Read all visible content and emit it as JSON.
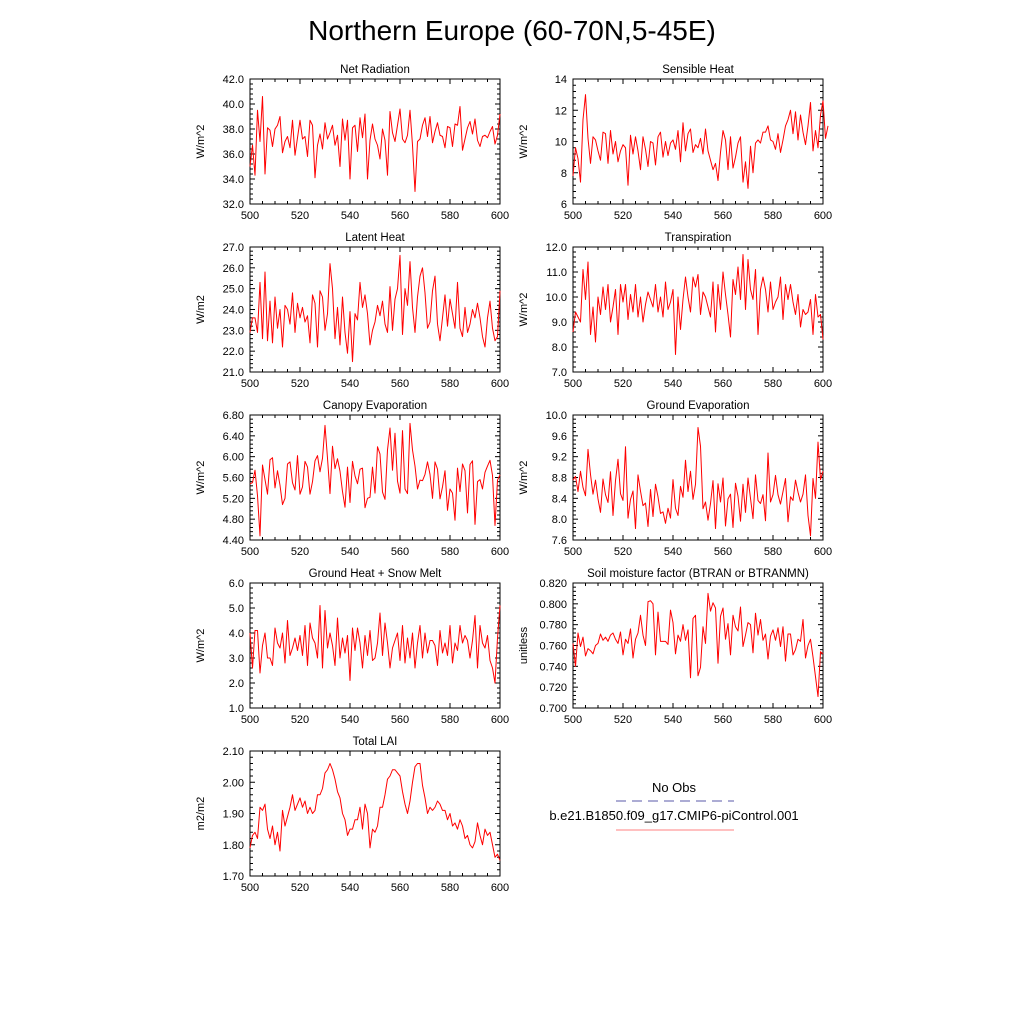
{
  "title": "Northern Europe (60-70N,5-45E)",
  "legend": {
    "obs_label": "No Obs",
    "obs_color": "#5a5aa8",
    "model_label": "b.e21.B1850.f09_g17.CMIP6-piControl.001",
    "model_color": "#ff8080"
  },
  "line_color": "#ff0000",
  "chart_data": [
    {
      "type": "line",
      "title": "Net Radiation",
      "ylabel": "W/m^2",
      "xlim": [
        500,
        600
      ],
      "ylim": [
        32,
        42
      ],
      "xticks": [
        "500",
        "520",
        "540",
        "560",
        "580",
        "600"
      ],
      "yticks": [
        "32.0",
        "34.0",
        "36.0",
        "38.0",
        "40.0",
        "42.0"
      ],
      "x_start": 500,
      "values": [
        35.0,
        36.7,
        34.3,
        39.5,
        37.0,
        40.6,
        34.4,
        38.1,
        37.9,
        36.6,
        38.0,
        38.3,
        39.0,
        36.1,
        37.0,
        37.4,
        36.5,
        38.7,
        35.9,
        37.3,
        38.7,
        37.2,
        37.4,
        35.8,
        38.7,
        38.3,
        34.1,
        36.7,
        37.6,
        36.4,
        38.5,
        37.2,
        37.7,
        38.3,
        36.7,
        37.5,
        35.0,
        38.8,
        37.1,
        38.7,
        34.0,
        38.1,
        38.3,
        36.2,
        38.9,
        37.3,
        39.2,
        34.0,
        37.1,
        38.4,
        37.2,
        36.7,
        35.6,
        38.0,
        37.1,
        34.3,
        39.4,
        37.7,
        37.0,
        38.3,
        39.6,
        37.2,
        36.9,
        37.5,
        39.5,
        36.7,
        33.0,
        37.0,
        37.2,
        38.3,
        38.9,
        37.4,
        39.0,
        36.9,
        37.8,
        38.5,
        37.5,
        37.4,
        36.5,
        38.2,
        38.1,
        36.6,
        38.4,
        38.3,
        39.8,
        36.3,
        37.2,
        38.1,
        38.6,
        37.6,
        38.8,
        37.1,
        36.6,
        37.4,
        37.5,
        37.3,
        37.8,
        38.2,
        36.8,
        37.5,
        39.2
      ]
    },
    {
      "type": "line",
      "title": "Sensible Heat",
      "ylabel": "W/m^2",
      "xlim": [
        500,
        600
      ],
      "ylim": [
        6,
        14
      ],
      "xticks": [
        "500",
        "520",
        "540",
        "560",
        "580",
        "600"
      ],
      "yticks": [
        "6",
        "8",
        "10",
        "12",
        "14"
      ],
      "x_start": 500,
      "values": [
        7.8,
        9.6,
        8.9,
        7.4,
        11.4,
        13.0,
        10.2,
        8.6,
        10.3,
        10.1,
        9.4,
        8.8,
        10.6,
        10.5,
        8.6,
        10.7,
        9.2,
        10.0,
        8.7,
        9.4,
        9.8,
        9.6,
        7.2,
        10.4,
        9.2,
        10.3,
        9.4,
        8.2,
        10.3,
        9.5,
        8.4,
        10.0,
        9.9,
        8.5,
        10.3,
        10.6,
        9.0,
        10.0,
        9.1,
        9.9,
        10.1,
        9.5,
        10.7,
        8.7,
        11.2,
        9.4,
        10.5,
        10.8,
        9.3,
        9.8,
        9.6,
        10.2,
        9.2,
        10.8,
        9.4,
        8.8,
        8.2,
        8.6,
        7.5,
        9.3,
        10.7,
        10.1,
        8.2,
        10.3,
        8.3,
        9.0,
        9.9,
        10.3,
        7.4,
        8.7,
        7.0,
        9.7,
        8.0,
        9.9,
        10.1,
        9.9,
        10.6,
        10.6,
        11.0,
        10.1,
        10.0,
        9.5,
        10.5,
        9.3,
        10.1,
        11.0,
        11.4,
        12.0,
        10.5,
        11.9,
        10.1,
        11.7,
        10.6,
        9.8,
        11.0,
        12.5,
        9.4,
        10.7,
        9.6,
        11.7,
        12.6,
        10.2,
        11.0
      ]
    },
    {
      "type": "line",
      "title": "Latent Heat",
      "ylabel": "W/m2",
      "xlim": [
        500,
        600
      ],
      "ylim": [
        21,
        27
      ],
      "xticks": [
        "500",
        "520",
        "540",
        "560",
        "580",
        "600"
      ],
      "yticks": [
        "21.0",
        "22.0",
        "23.0",
        "24.0",
        "25.0",
        "26.0",
        "27.0"
      ],
      "x_start": 500,
      "values": [
        22.9,
        23.6,
        23.6,
        22.9,
        25.3,
        22.6,
        25.8,
        22.5,
        24.4,
        22.4,
        24.6,
        23.1,
        24.0,
        22.2,
        24.2,
        24.0,
        23.3,
        24.8,
        22.9,
        24.3,
        23.6,
        24.1,
        23.4,
        23.7,
        22.4,
        24.7,
        24.3,
        22.2,
        24.9,
        24.6,
        23.0,
        23.8,
        26.2,
        25.0,
        22.6,
        24.1,
        22.3,
        24.6,
        22.9,
        21.9,
        23.9,
        21.5,
        23.8,
        23.5,
        25.3,
        24.1,
        24.7,
        23.8,
        22.3,
        23.0,
        23.4,
        24.2,
        23.7,
        24.4,
        23.3,
        22.9,
        25.1,
        23.0,
        24.5,
        25.0,
        26.6,
        22.8,
        25.0,
        24.2,
        26.3,
        24.1,
        22.9,
        24.6,
        25.6,
        26.0,
        24.8,
        23.1,
        23.4,
        24.9,
        25.6,
        23.3,
        22.5,
        23.6,
        24.7,
        23.2,
        24.5,
        23.8,
        23.1,
        25.3,
        23.1,
        22.7,
        24.1,
        22.9,
        23.3,
        24.0,
        23.6,
        24.3,
        23.6,
        22.7,
        22.2,
        23.6,
        24.4,
        23.1,
        22.5,
        22.7,
        24.9
      ]
    },
    {
      "type": "line",
      "title": "Transpiration",
      "ylabel": "W/m^2",
      "xlim": [
        500,
        600
      ],
      "ylim": [
        7,
        12
      ],
      "xticks": [
        "500",
        "520",
        "540",
        "560",
        "580",
        "600"
      ],
      "yticks": [
        "7.0",
        "8.0",
        "9.0",
        "10.0",
        "11.0",
        "12.0"
      ],
      "x_start": 500,
      "values": [
        8.6,
        9.4,
        9.2,
        9.0,
        11.1,
        9.9,
        11.4,
        8.5,
        9.6,
        8.2,
        10.0,
        9.3,
        10.4,
        9.5,
        10.5,
        9.0,
        9.6,
        10.3,
        8.5,
        10.5,
        9.8,
        10.5,
        9.1,
        10.1,
        9.4,
        10.5,
        9.2,
        10.0,
        9.0,
        9.7,
        10.2,
        9.9,
        9.6,
        10.5,
        9.4,
        10.0,
        9.2,
        10.6,
        9.5,
        9.8,
        10.3,
        7.7,
        10.0,
        8.7,
        9.9,
        10.8,
        10.0,
        9.4,
        10.8,
        10.4,
        10.9,
        9.3,
        10.2,
        10.0,
        9.6,
        9.2,
        10.6,
        8.6,
        10.5,
        9.5,
        11.0,
        10.1,
        9.3,
        8.4,
        10.7,
        10.1,
        11.2,
        9.9,
        11.7,
        9.5,
        11.5,
        10.3,
        9.9,
        11.1,
        8.5,
        10.3,
        10.8,
        10.3,
        9.4,
        10.6,
        9.5,
        9.8,
        10.0,
        10.8,
        9.1,
        10.5,
        9.9,
        10.5,
        9.8,
        9.3,
        10.1,
        8.8,
        9.5,
        9.3,
        9.4,
        9.9,
        8.5,
        10.1,
        9.2,
        9.3,
        8.3
      ]
    },
    {
      "type": "line",
      "title": "Canopy Evaporation",
      "ylabel": "W/m^2",
      "xlim": [
        500,
        600
      ],
      "ylim": [
        4.4,
        6.8
      ],
      "xticks": [
        "500",
        "520",
        "540",
        "560",
        "580",
        "600"
      ],
      "yticks": [
        "4.40",
        "4.80",
        "5.20",
        "5.60",
        "6.00",
        "6.40",
        "6.80"
      ],
      "x_start": 500,
      "values": [
        5.48,
        5.5,
        5.74,
        5.25,
        4.48,
        5.84,
        5.56,
        5.28,
        5.94,
        5.98,
        5.4,
        5.73,
        5.45,
        5.08,
        5.2,
        5.86,
        5.9,
        5.5,
        5.36,
        6.02,
        5.28,
        5.42,
        5.91,
        5.8,
        5.28,
        5.52,
        5.92,
        6.02,
        5.71,
        5.97,
        6.6,
        5.97,
        5.29,
        6.2,
        5.77,
        5.96,
        5.72,
        5.33,
        5.03,
        5.8,
        5.12,
        5.91,
        5.63,
        5.48,
        5.76,
        5.78,
        5.02,
        5.2,
        5.22,
        5.8,
        5.3,
        6.19,
        6.05,
        5.32,
        5.18,
        6.13,
        6.55,
        5.74,
        6.45,
        5.53,
        5.3,
        6.5,
        5.38,
        5.29,
        6.64,
        6.13,
        5.82,
        5.38,
        5.55,
        5.54,
        5.66,
        5.9,
        5.66,
        5.2,
        5.9,
        5.76,
        5.19,
        5.42,
        5.73,
        4.97,
        5.38,
        5.3,
        4.78,
        5.78,
        5.33,
        5.86,
        5.73,
        4.92,
        5.85,
        5.92,
        4.7,
        5.52,
        5.56,
        5.38,
        5.7,
        5.82,
        5.93,
        5.64,
        4.68,
        5.55,
        5.65
      ]
    },
    {
      "type": "line",
      "title": "Ground Evaporation",
      "ylabel": "W/m^2",
      "xlim": [
        500,
        600
      ],
      "ylim": [
        7.6,
        10.0
      ],
      "xticks": [
        "500",
        "520",
        "540",
        "560",
        "580",
        "600"
      ],
      "yticks": [
        "7.6",
        "8.0",
        "8.4",
        "8.8",
        "9.2",
        "9.6",
        "10.0"
      ],
      "x_start": 500,
      "values": [
        8.75,
        8.82,
        8.53,
        8.92,
        8.61,
        8.45,
        9.34,
        8.86,
        8.48,
        8.75,
        8.39,
        8.13,
        8.77,
        8.47,
        8.32,
        8.91,
        8.07,
        8.74,
        9.15,
        8.49,
        8.36,
        9.39,
        8.02,
        8.38,
        8.54,
        7.82,
        8.85,
        8.54,
        8.26,
        8.31,
        7.86,
        8.57,
        8.05,
        8.67,
        8.43,
        8.11,
        8.14,
        7.92,
        8.21,
        8.02,
        8.76,
        8.21,
        8.07,
        8.63,
        8.42,
        9.13,
        8.53,
        8.92,
        8.38,
        8.67,
        9.76,
        9.4,
        8.2,
        8.33,
        7.98,
        8.3,
        8.74,
        7.82,
        8.68,
        8.33,
        8.79,
        7.87,
        8.39,
        8.48,
        7.84,
        8.69,
        8.44,
        7.96,
        8.67,
        8.13,
        8.79,
        8.4,
        8.01,
        8.85,
        8.36,
        8.3,
        8.47,
        7.97,
        9.27,
        8.33,
        8.47,
        8.84,
        8.47,
        8.29,
        8.53,
        8.78,
        7.95,
        8.43,
        8.36,
        8.75,
        8.52,
        8.33,
        8.48,
        8.85,
        8.07,
        7.68,
        8.78,
        8.4,
        9.48,
        8.76,
        8.92
      ]
    },
    {
      "type": "line",
      "title": "Ground Heat + Snow Melt",
      "ylabel": "W/m^2",
      "xlim": [
        500,
        600
      ],
      "ylim": [
        1,
        6
      ],
      "xticks": [
        "500",
        "520",
        "540",
        "560",
        "580",
        "600"
      ],
      "yticks": [
        "1.0",
        "2.0",
        "3.0",
        "4.0",
        "5.0",
        "6.0"
      ],
      "x_start": 500,
      "values": [
        4.0,
        2.6,
        4.1,
        4.1,
        2.4,
        3.5,
        4.0,
        3.0,
        3.0,
        2.7,
        4.2,
        3.6,
        3.4,
        4.0,
        2.8,
        4.5,
        3.1,
        3.4,
        3.8,
        3.3,
        3.9,
        3.1,
        4.3,
        2.7,
        4.4,
        3.8,
        3.6,
        3.0,
        5.1,
        2.6,
        4.9,
        3.4,
        4.0,
        3.5,
        2.7,
        4.6,
        3.0,
        3.8,
        3.2,
        3.9,
        2.1,
        4.2,
        3.3,
        4.2,
        3.6,
        2.6,
        3.9,
        3.1,
        4.1,
        2.9,
        3.0,
        3.6,
        4.8,
        3.1,
        4.4,
        3.6,
        2.6,
        3.4,
        3.7,
        4.0,
        2.9,
        4.3,
        2.8,
        3.8,
        3.0,
        4.0,
        2.6,
        3.6,
        4.3,
        3.0,
        4.0,
        3.2,
        3.7,
        3.7,
        3.5,
        2.7,
        4.1,
        3.2,
        3.6,
        3.1,
        4.3,
        2.8,
        3.6,
        3.3,
        4.3,
        3.6,
        3.9,
        3.7,
        3.0,
        3.7,
        4.7,
        2.6,
        4.3,
        3.6,
        3.4,
        3.9,
        2.9,
        2.6,
        2.0,
        3.8,
        5.1
      ]
    },
    {
      "type": "line",
      "title": "Soil moisture factor (BTRAN or BTRANMN)",
      "ylabel": "unitless",
      "xlim": [
        500,
        600
      ],
      "ylim": [
        0.7,
        0.82
      ],
      "xticks": [
        "500",
        "520",
        "540",
        "560",
        "580",
        "600"
      ],
      "yticks": [
        "0.700",
        "0.720",
        "0.740",
        "0.760",
        "0.780",
        "0.800",
        "0.820"
      ],
      "x_start": 500,
      "values": [
        0.762,
        0.74,
        0.772,
        0.759,
        0.768,
        0.75,
        0.757,
        0.755,
        0.752,
        0.76,
        0.762,
        0.771,
        0.765,
        0.768,
        0.764,
        0.77,
        0.772,
        0.766,
        0.762,
        0.773,
        0.751,
        0.766,
        0.762,
        0.776,
        0.748,
        0.766,
        0.772,
        0.789,
        0.77,
        0.76,
        0.802,
        0.803,
        0.8,
        0.751,
        0.792,
        0.764,
        0.764,
        0.764,
        0.761,
        0.794,
        0.782,
        0.752,
        0.77,
        0.764,
        0.78,
        0.765,
        0.775,
        0.729,
        0.786,
        0.789,
        0.731,
        0.739,
        0.778,
        0.762,
        0.81,
        0.793,
        0.801,
        0.796,
        0.743,
        0.788,
        0.796,
        0.766,
        0.781,
        0.751,
        0.789,
        0.778,
        0.774,
        0.797,
        0.759,
        0.77,
        0.782,
        0.78,
        0.753,
        0.791,
        0.77,
        0.785,
        0.765,
        0.771,
        0.747,
        0.769,
        0.775,
        0.765,
        0.777,
        0.759,
        0.778,
        0.745,
        0.771,
        0.771,
        0.751,
        0.756,
        0.766,
        0.764,
        0.785,
        0.748,
        0.76,
        0.766,
        0.749,
        0.73,
        0.711,
        0.754,
        0.752
      ]
    },
    {
      "type": "line",
      "title": "Total LAI",
      "ylabel": "m2/m2",
      "xlim": [
        500,
        600
      ],
      "ylim": [
        1.7,
        2.1
      ],
      "xticks": [
        "500",
        "520",
        "540",
        "560",
        "580",
        "600"
      ],
      "yticks": [
        "1.70",
        "1.80",
        "1.90",
        "2.00",
        "2.10"
      ],
      "x_start": 500,
      "values": [
        1.79,
        1.83,
        1.84,
        1.82,
        1.92,
        1.91,
        1.93,
        1.85,
        1.82,
        1.86,
        1.8,
        1.84,
        1.78,
        1.91,
        1.86,
        1.89,
        1.92,
        1.96,
        1.91,
        1.93,
        1.95,
        1.92,
        1.94,
        1.9,
        1.92,
        1.9,
        1.91,
        1.96,
        1.96,
        1.98,
        2.03,
        2.04,
        2.06,
        2.04,
        2.01,
        1.97,
        1.95,
        1.9,
        1.88,
        1.83,
        1.85,
        1.85,
        1.88,
        1.88,
        1.92,
        1.85,
        1.93,
        1.9,
        1.79,
        1.85,
        1.84,
        1.86,
        1.92,
        1.92,
        1.96,
        2.01,
        2.02,
        2.04,
        2.04,
        2.03,
        2.02,
        1.97,
        1.93,
        1.9,
        1.94,
        2.0,
        2.05,
        2.06,
        2.06,
        1.99,
        1.95,
        1.9,
        1.92,
        1.91,
        1.92,
        1.94,
        1.93,
        1.91,
        1.91,
        1.88,
        1.9,
        1.86,
        1.87,
        1.85,
        1.88,
        1.86,
        1.82,
        1.83,
        1.8,
        1.79,
        1.81,
        1.87,
        1.83,
        1.8,
        1.85,
        1.83,
        1.84,
        1.8,
        1.76,
        1.77,
        1.75
      ]
    }
  ]
}
